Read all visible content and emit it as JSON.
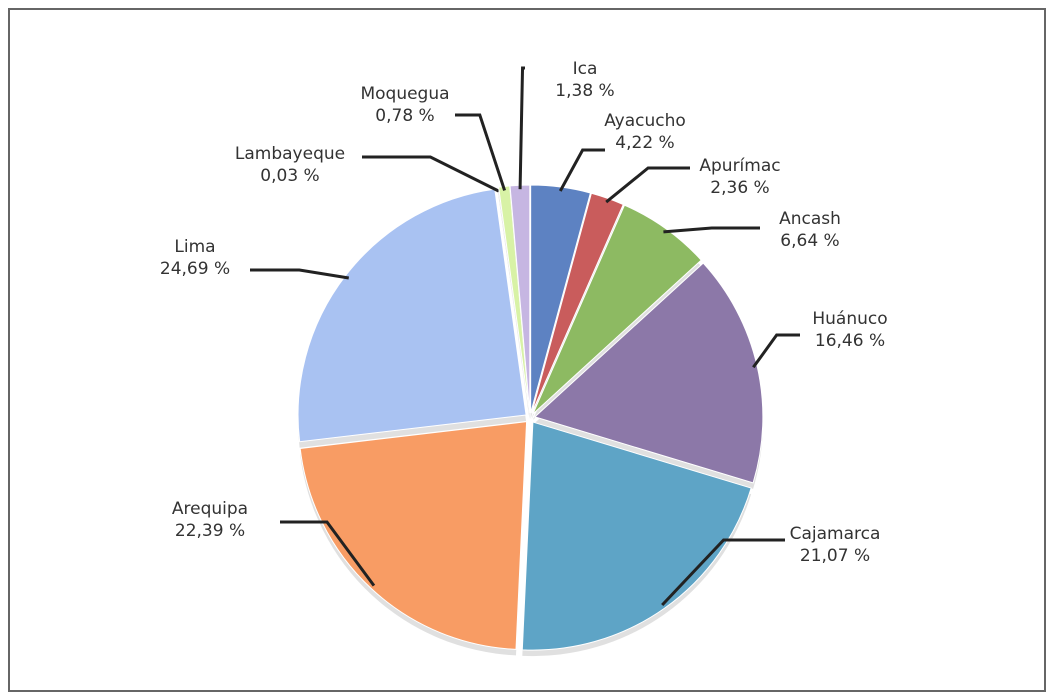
{
  "chart_data": {
    "type": "pie",
    "categories": [
      "Ayacucho",
      "Apurímac",
      "Ancash",
      "Huánuco",
      "Cajamarca",
      "Arequipa",
      "Lima",
      "Lambayeque",
      "Moquegua",
      "Ica"
    ],
    "values": [
      4.22,
      2.36,
      6.64,
      16.46,
      21.07,
      22.39,
      24.69,
      0.03,
      0.78,
      1.38
    ],
    "value_labels": [
      "4,22 %",
      "2,36 %",
      "6,64 %",
      "16,46 %",
      "21,07 %",
      "22,39 %",
      "24,69 %",
      "0,03 %",
      "0,78 %",
      "1,38 %"
    ],
    "colors": [
      "#5d82c2",
      "#c95c5c",
      "#8dba62",
      "#8c78a8",
      "#5ea4c6",
      "#f89c64",
      "#a9c2f2",
      "#c9c9c9",
      "#d8f2a6",
      "#c6b6e2"
    ]
  }
}
